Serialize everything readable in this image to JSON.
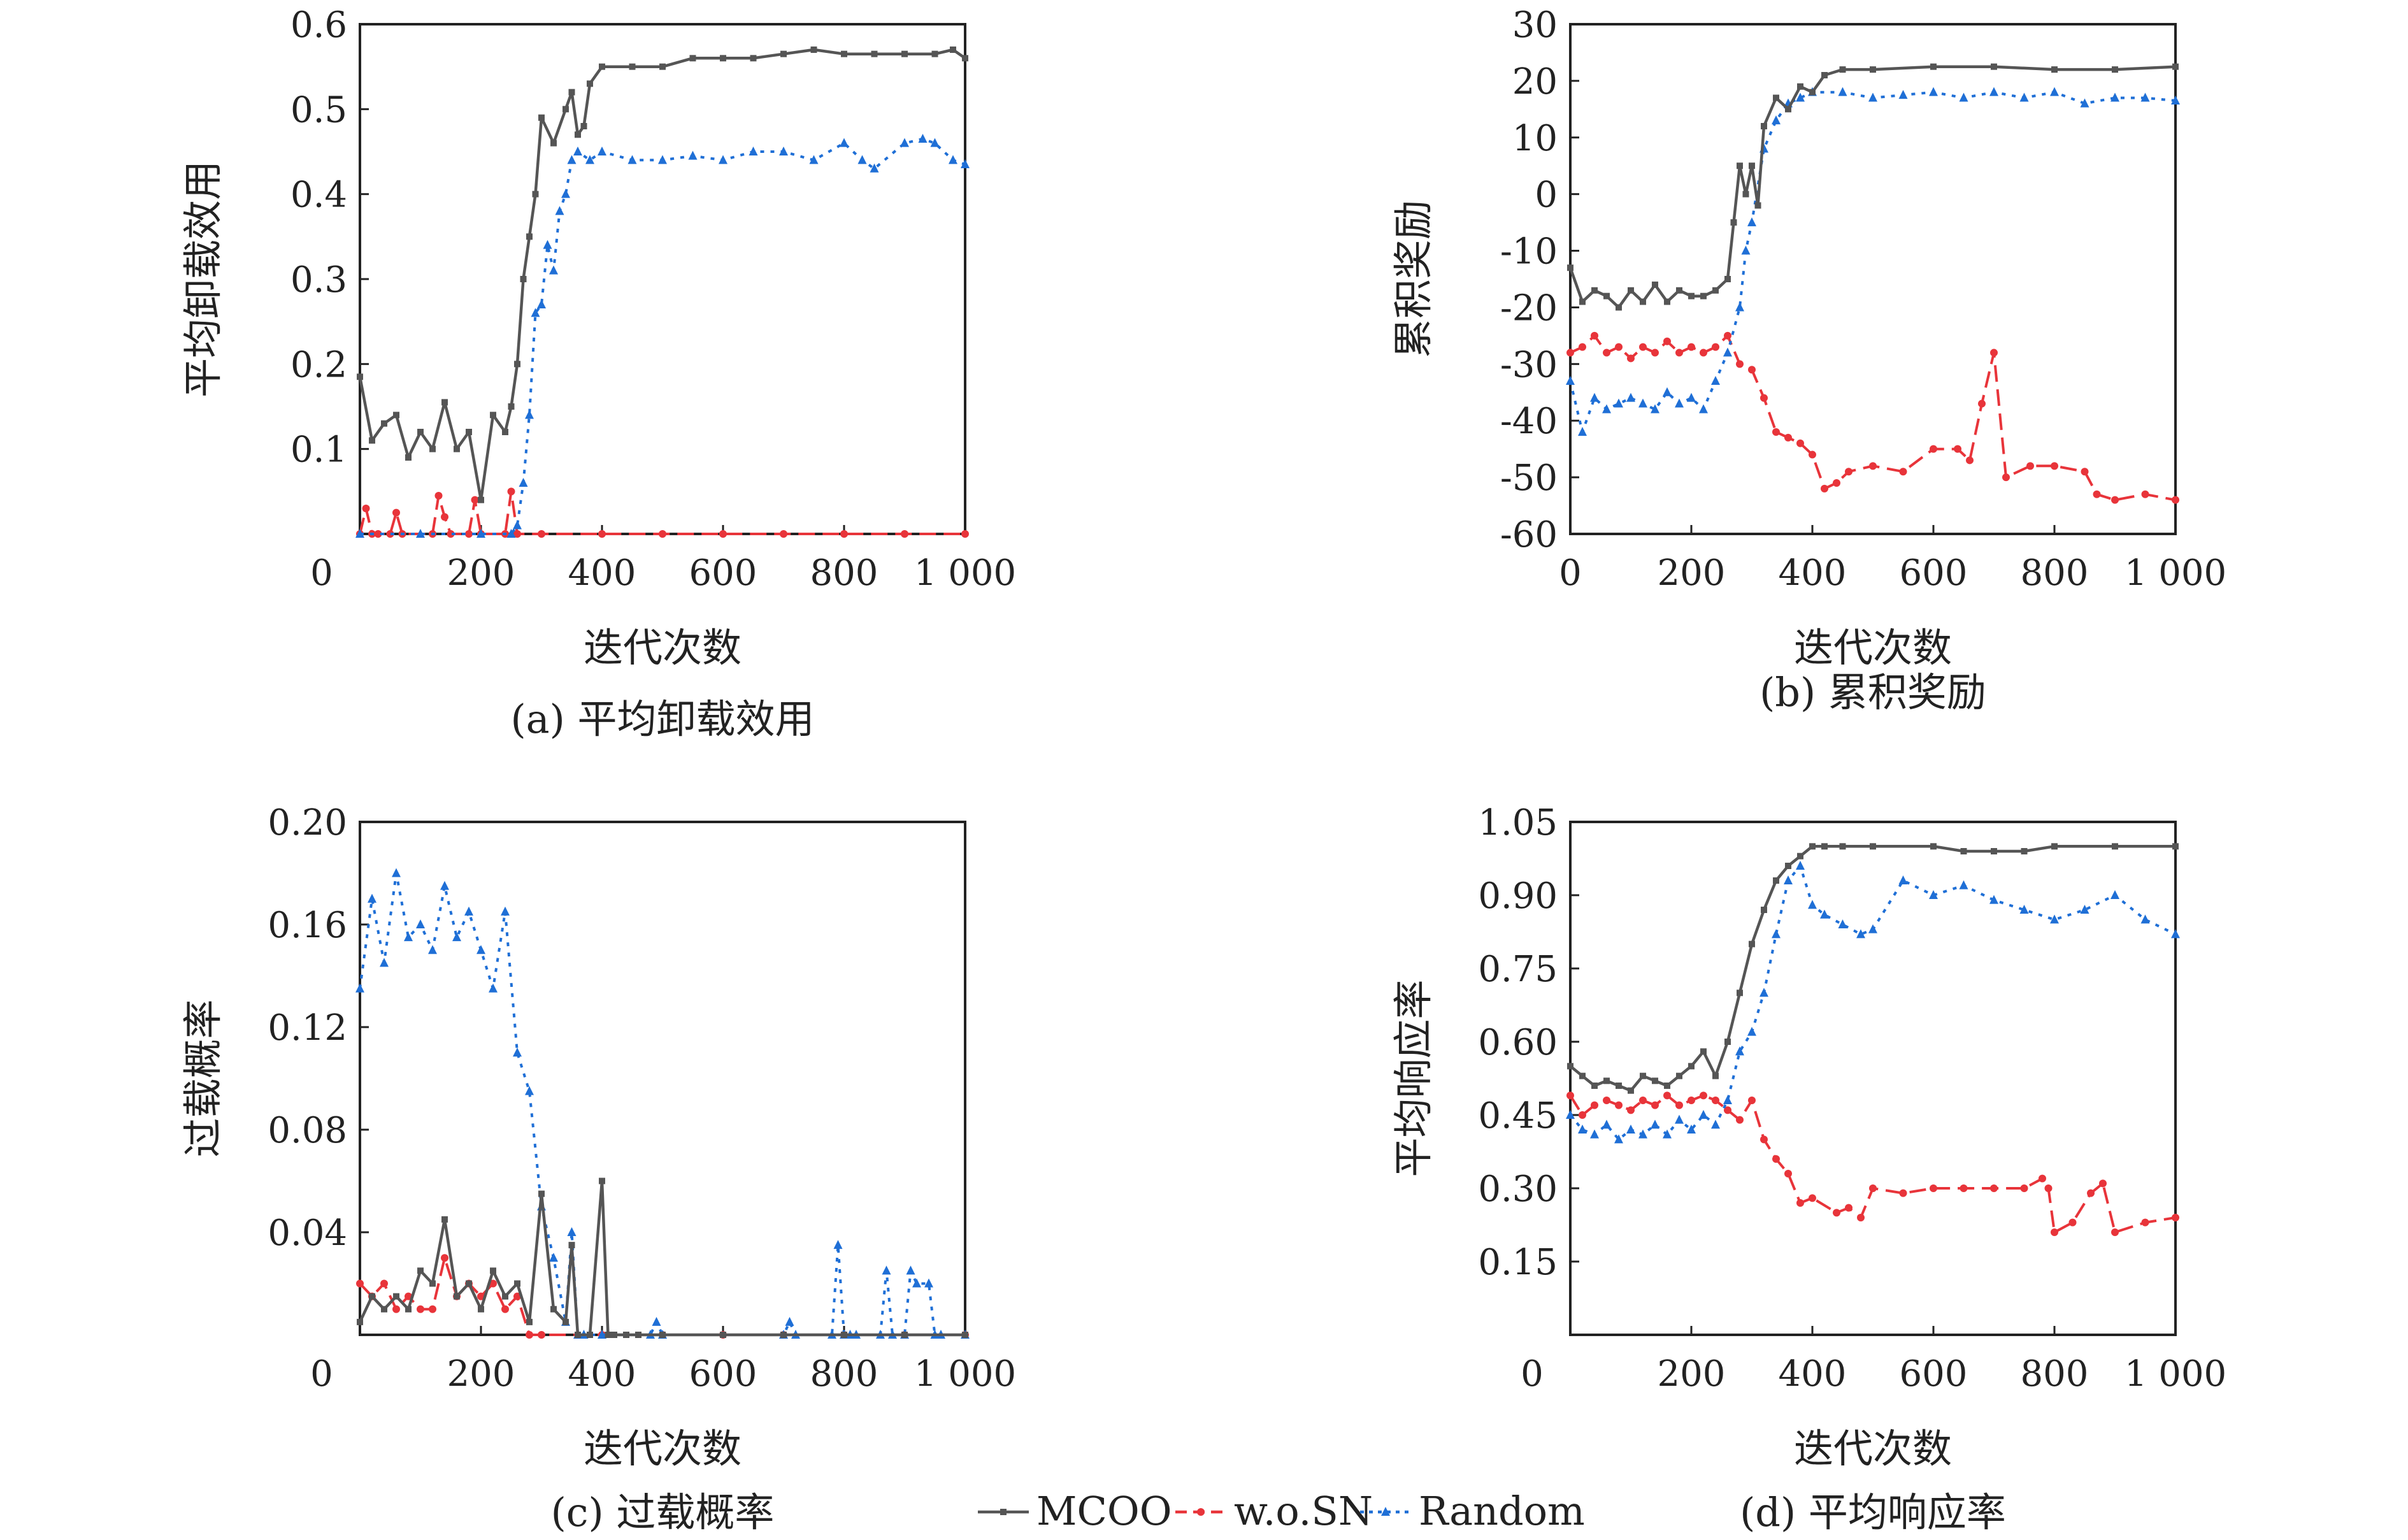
{
  "x_axis_label": "迭代次数",
  "x_tick_labels": [
    "0",
    "200",
    "400",
    "600",
    "800",
    "1 000"
  ],
  "series_names": [
    "MCOO",
    "w.o.SN",
    "Random"
  ],
  "colors": {
    "MCOO": "#555555",
    "w.o.SN": "#e8343a",
    "Random": "#1f6fd6",
    "axis": "#222222"
  },
  "panels": [
    {
      "caption": "(a) 平均卸载效用",
      "ylabel": "平均卸载效用",
      "y_ticks": [
        "0.6",
        "0.5",
        "0.4",
        "0.3",
        "0.2",
        "0.1"
      ]
    },
    {
      "caption": "(b) 累积奖励",
      "ylabel": "累积奖励",
      "y_ticks": [
        "30",
        "20",
        "10",
        "0",
        "-10",
        "-20",
        "-30",
        "-40",
        "-50",
        "-60"
      ]
    },
    {
      "caption": "(c) 过载概率",
      "ylabel": "过载概率",
      "y_ticks": [
        "0.20",
        "0.16",
        "0.12",
        "0.08",
        "0.04"
      ]
    },
    {
      "caption": "(d) 平均响应率",
      "ylabel": "平均响应率",
      "y_ticks": [
        "1.05",
        "0.90",
        "0.75",
        "0.60",
        "0.45",
        "0.30",
        "0.15"
      ]
    }
  ],
  "chart_data": [
    {
      "type": "line",
      "title": "(a) 平均卸载效用",
      "xlabel": "迭代次数",
      "ylabel": "平均卸载效用",
      "xlim": [
        0,
        1000
      ],
      "ylim": [
        0,
        0.6
      ],
      "series": [
        {
          "name": "MCOO",
          "x": [
            0,
            20,
            40,
            60,
            80,
            100,
            120,
            140,
            160,
            180,
            200,
            220,
            240,
            250,
            260,
            270,
            280,
            290,
            300,
            320,
            340,
            350,
            360,
            370,
            380,
            400,
            450,
            500,
            550,
            600,
            650,
            700,
            750,
            800,
            850,
            900,
            950,
            980,
            1000
          ],
          "values": [
            0.185,
            0.11,
            0.13,
            0.14,
            0.09,
            0.12,
            0.1,
            0.155,
            0.1,
            0.12,
            0.04,
            0.14,
            0.12,
            0.15,
            0.2,
            0.3,
            0.35,
            0.4,
            0.49,
            0.46,
            0.5,
            0.52,
            0.47,
            0.48,
            0.53,
            0.55,
            0.55,
            0.55,
            0.56,
            0.56,
            0.56,
            0.565,
            0.57,
            0.565,
            0.565,
            0.565,
            0.565,
            0.57,
            0.56
          ]
        },
        {
          "name": "w.o.SN",
          "x": [
            0,
            10,
            20,
            30,
            50,
            60,
            70,
            120,
            130,
            140,
            150,
            180,
            190,
            200,
            240,
            250,
            260,
            300,
            400,
            500,
            600,
            700,
            800,
            900,
            1000
          ],
          "values": [
            0.0,
            0.03,
            0.0,
            0.0,
            0.0,
            0.025,
            0.0,
            0.0,
            0.045,
            0.02,
            0.0,
            0.0,
            0.04,
            0.0,
            0.0,
            0.05,
            0.0,
            0.0,
            0.0,
            0.0,
            0.0,
            0.0,
            0.0,
            0.0,
            0.0
          ]
        },
        {
          "name": "Random",
          "x": [
            0,
            100,
            200,
            250,
            260,
            270,
            280,
            290,
            300,
            310,
            320,
            330,
            340,
            350,
            360,
            380,
            400,
            450,
            500,
            550,
            600,
            650,
            700,
            750,
            800,
            830,
            850,
            900,
            930,
            950,
            980,
            1000
          ],
          "values": [
            0.0,
            0.0,
            0.0,
            0.0,
            0.01,
            0.06,
            0.14,
            0.26,
            0.27,
            0.34,
            0.31,
            0.38,
            0.4,
            0.44,
            0.45,
            0.44,
            0.45,
            0.44,
            0.44,
            0.445,
            0.44,
            0.45,
            0.45,
            0.44,
            0.46,
            0.44,
            0.43,
            0.46,
            0.465,
            0.46,
            0.44,
            0.435
          ]
        }
      ]
    },
    {
      "type": "line",
      "title": "(b) 累积奖励",
      "xlabel": "迭代次数",
      "ylabel": "累积奖励",
      "xlim": [
        0,
        1000
      ],
      "ylim": [
        -60,
        30
      ],
      "series": [
        {
          "name": "MCOO",
          "x": [
            0,
            20,
            40,
            60,
            80,
            100,
            120,
            140,
            160,
            180,
            200,
            220,
            240,
            260,
            270,
            280,
            290,
            300,
            310,
            320,
            340,
            360,
            380,
            400,
            420,
            450,
            500,
            600,
            700,
            800,
            900,
            1000
          ],
          "values": [
            -13,
            -19,
            -17,
            -18,
            -20,
            -17,
            -19,
            -16,
            -19,
            -17,
            -18,
            -18,
            -17,
            -15,
            -5,
            5,
            0,
            5,
            -2,
            12,
            17,
            15,
            19,
            18,
            21,
            22,
            22,
            22.5,
            22.5,
            22,
            22,
            22.5
          ]
        },
        {
          "name": "w.o.SN",
          "x": [
            0,
            20,
            40,
            60,
            80,
            100,
            120,
            140,
            160,
            180,
            200,
            220,
            240,
            260,
            280,
            300,
            320,
            340,
            360,
            380,
            400,
            420,
            440,
            460,
            500,
            550,
            600,
            640,
            660,
            680,
            700,
            720,
            760,
            800,
            850,
            870,
            900,
            950,
            1000
          ],
          "values": [
            -28,
            -27,
            -25,
            -28,
            -27,
            -29,
            -27,
            -28,
            -26,
            -28,
            -27,
            -28,
            -27,
            -25,
            -30,
            -31,
            -36,
            -42,
            -43,
            -44,
            -46,
            -52,
            -51,
            -49,
            -48,
            -49,
            -45,
            -45,
            -47,
            -37,
            -28,
            -50,
            -48,
            -48,
            -49,
            -53,
            -54,
            -53,
            -54
          ]
        },
        {
          "name": "Random",
          "x": [
            0,
            20,
            40,
            60,
            80,
            100,
            120,
            140,
            160,
            180,
            200,
            220,
            240,
            260,
            280,
            290,
            300,
            320,
            340,
            360,
            380,
            400,
            450,
            500,
            550,
            600,
            650,
            700,
            750,
            800,
            850,
            900,
            950,
            1000
          ],
          "values": [
            -33,
            -42,
            -36,
            -38,
            -37,
            -36,
            -37,
            -38,
            -35,
            -37,
            -36,
            -38,
            -33,
            -28,
            -20,
            -10,
            -5,
            8,
            13,
            16,
            17,
            18,
            18,
            17,
            17.5,
            18,
            17,
            18,
            17,
            18,
            16,
            17,
            17,
            16.5
          ]
        }
      ]
    },
    {
      "type": "line",
      "title": "(c) 过载概率",
      "xlabel": "迭代次数",
      "ylabel": "过载概率",
      "xlim": [
        0,
        1000
      ],
      "ylim": [
        0,
        0.2
      ],
      "series": [
        {
          "name": "MCOO",
          "x": [
            0,
            20,
            40,
            60,
            80,
            100,
            120,
            140,
            160,
            180,
            200,
            220,
            240,
            260,
            280,
            300,
            320,
            340,
            350,
            360,
            380,
            400,
            410,
            420,
            440,
            460,
            500,
            600,
            700,
            800,
            900,
            1000
          ],
          "values": [
            0.005,
            0.015,
            0.01,
            0.015,
            0.01,
            0.025,
            0.02,
            0.045,
            0.015,
            0.02,
            0.01,
            0.025,
            0.015,
            0.02,
            0.005,
            0.055,
            0.01,
            0.005,
            0.035,
            0.0,
            0.0,
            0.06,
            0.0,
            0.0,
            0.0,
            0.0,
            0.0,
            0.0,
            0.0,
            0.0,
            0.0,
            0.0
          ]
        },
        {
          "name": "w.o.SN",
          "x": [
            0,
            20,
            40,
            60,
            80,
            100,
            120,
            140,
            160,
            180,
            200,
            220,
            240,
            260,
            280,
            300,
            400,
            500,
            600,
            700,
            800,
            900,
            1000
          ],
          "values": [
            0.02,
            0.015,
            0.02,
            0.01,
            0.015,
            0.01,
            0.01,
            0.03,
            0.015,
            0.02,
            0.015,
            0.02,
            0.01,
            0.015,
            0.0,
            0.0,
            0.0,
            0.0,
            0.0,
            0.0,
            0.0,
            0.0,
            0.0
          ]
        },
        {
          "name": "Random",
          "x": [
            0,
            20,
            40,
            60,
            80,
            100,
            120,
            140,
            160,
            180,
            200,
            220,
            240,
            260,
            280,
            300,
            320,
            340,
            350,
            360,
            370,
            400,
            480,
            490,
            500,
            700,
            710,
            720,
            780,
            790,
            800,
            810,
            820,
            860,
            870,
            880,
            900,
            910,
            920,
            940,
            950,
            960,
            1000
          ],
          "values": [
            0.135,
            0.17,
            0.145,
            0.18,
            0.155,
            0.16,
            0.15,
            0.175,
            0.155,
            0.165,
            0.15,
            0.135,
            0.165,
            0.11,
            0.095,
            0.05,
            0.03,
            0.005,
            0.04,
            0.0,
            0.0,
            0.0,
            0.0,
            0.005,
            0.0,
            0.0,
            0.005,
            0.0,
            0.0,
            0.035,
            0.0,
            0.0,
            0.0,
            0.0,
            0.025,
            0.0,
            0.0,
            0.025,
            0.02,
            0.02,
            0.0,
            0.0,
            0.0
          ]
        }
      ]
    },
    {
      "type": "line",
      "title": "(d) 平均响应率",
      "xlabel": "迭代次数",
      "ylabel": "平均响应率",
      "xlim": [
        0,
        1000
      ],
      "ylim": [
        0,
        1.05
      ],
      "series": [
        {
          "name": "MCOO",
          "x": [
            0,
            20,
            40,
            60,
            80,
            100,
            120,
            140,
            160,
            180,
            200,
            220,
            240,
            260,
            280,
            300,
            320,
            340,
            360,
            380,
            400,
            420,
            450,
            500,
            600,
            650,
            700,
            750,
            800,
            900,
            1000
          ],
          "values": [
            0.55,
            0.53,
            0.51,
            0.52,
            0.51,
            0.5,
            0.53,
            0.52,
            0.51,
            0.53,
            0.55,
            0.58,
            0.53,
            0.6,
            0.7,
            0.8,
            0.87,
            0.93,
            0.96,
            0.98,
            1.0,
            1.0,
            1.0,
            1.0,
            1.0,
            0.99,
            0.99,
            0.99,
            1.0,
            1.0,
            1.0
          ]
        },
        {
          "name": "w.o.SN",
          "x": [
            0,
            20,
            40,
            60,
            80,
            100,
            120,
            140,
            160,
            180,
            200,
            220,
            240,
            260,
            280,
            300,
            320,
            340,
            360,
            380,
            400,
            440,
            460,
            480,
            500,
            550,
            600,
            650,
            700,
            750,
            780,
            790,
            800,
            830,
            860,
            880,
            900,
            950,
            1000
          ],
          "values": [
            0.49,
            0.45,
            0.47,
            0.48,
            0.47,
            0.46,
            0.48,
            0.47,
            0.49,
            0.47,
            0.48,
            0.49,
            0.48,
            0.46,
            0.44,
            0.48,
            0.4,
            0.36,
            0.33,
            0.27,
            0.28,
            0.25,
            0.26,
            0.24,
            0.3,
            0.29,
            0.3,
            0.3,
            0.3,
            0.3,
            0.32,
            0.3,
            0.21,
            0.23,
            0.29,
            0.31,
            0.21,
            0.23,
            0.24
          ]
        },
        {
          "name": "Random",
          "x": [
            0,
            20,
            40,
            60,
            80,
            100,
            120,
            140,
            160,
            180,
            200,
            220,
            240,
            260,
            280,
            300,
            320,
            340,
            360,
            380,
            400,
            420,
            450,
            480,
            500,
            550,
            600,
            650,
            700,
            750,
            800,
            850,
            900,
            950,
            1000
          ],
          "values": [
            0.45,
            0.42,
            0.41,
            0.43,
            0.4,
            0.42,
            0.41,
            0.43,
            0.41,
            0.44,
            0.42,
            0.45,
            0.43,
            0.48,
            0.58,
            0.62,
            0.7,
            0.82,
            0.93,
            0.96,
            0.88,
            0.86,
            0.84,
            0.82,
            0.83,
            0.93,
            0.9,
            0.92,
            0.89,
            0.87,
            0.85,
            0.87,
            0.9,
            0.85,
            0.82
          ]
        }
      ]
    }
  ]
}
